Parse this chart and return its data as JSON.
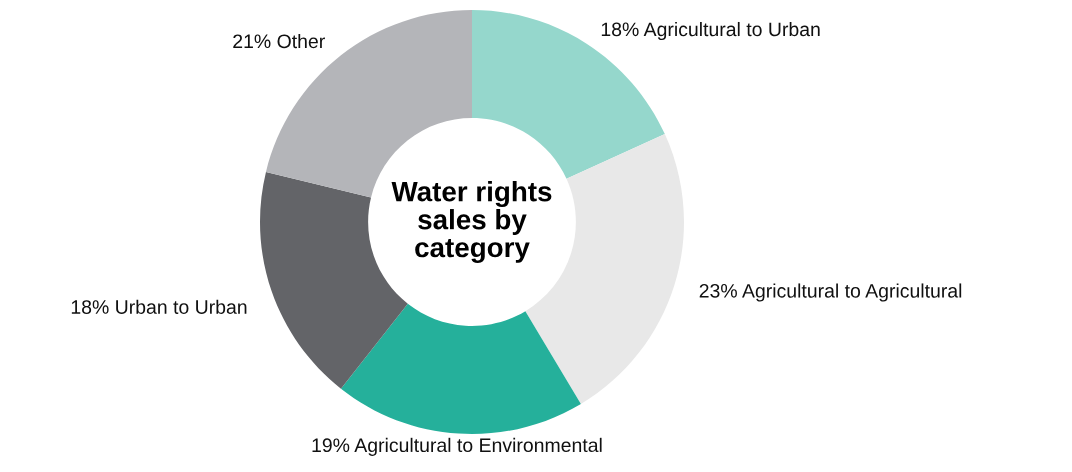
{
  "chart_data": {
    "type": "donut",
    "title": "Water rights\nsales by\ncategory",
    "categories": [
      "Agricultural to Urban",
      "Agricultural to Agricultural",
      "Agricultural to Environmental",
      "Urban to Urban",
      "Other"
    ],
    "values": [
      18,
      23,
      19,
      18,
      21
    ],
    "value_labels": [
      "18%",
      "23%",
      "19%",
      "18%",
      "21%"
    ],
    "colors": [
      "#95d7cc",
      "#e8e8e8",
      "#25b09b",
      "#636468",
      "#b4b5b9"
    ]
  }
}
